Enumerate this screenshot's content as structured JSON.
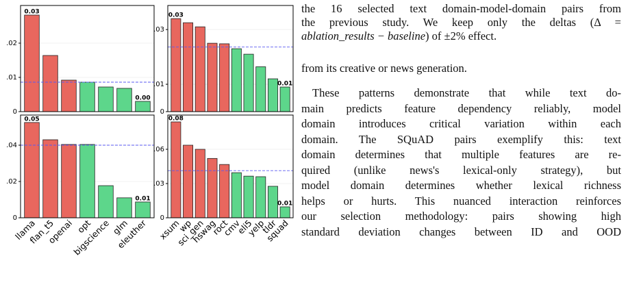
{
  "chart_data": [
    {
      "type": "bar",
      "ylim": [
        0,
        0.031
      ],
      "yticks": [
        0,
        {
          "value": 0.01,
          "label": ".01"
        },
        {
          "value": 0.02,
          "label": ".02"
        }
      ],
      "grid": true,
      "values": [
        0.0282,
        0.0164,
        0.0092,
        0.0086,
        0.0072,
        0.0068,
        0.003
      ],
      "value_labels": [
        "0.03",
        null,
        null,
        null,
        null,
        null,
        "0.00"
      ],
      "colors": [
        "#e8675e",
        "#e8675e",
        "#e8675e",
        "#5dd68b",
        "#5dd68b",
        "#5dd68b",
        "#5dd68b"
      ],
      "reference_line": 0.0086
    },
    {
      "type": "bar",
      "ylim": [
        0,
        0.0388
      ],
      "yticks": [
        0,
        {
          "value": 0.01,
          "label": ".01"
        },
        {
          "value": 0.03,
          "label": ".03"
        }
      ],
      "grid": true,
      "values": [
        0.034,
        0.0325,
        0.031,
        0.025,
        0.0248,
        0.023,
        0.021,
        0.0164,
        0.012,
        0.009
      ],
      "value_labels": [
        "0.03",
        null,
        null,
        null,
        null,
        null,
        null,
        null,
        null,
        "0.01"
      ],
      "colors": [
        "#e8675e",
        "#e8675e",
        "#e8675e",
        "#e8675e",
        "#e8675e",
        "#5dd68b",
        "#5dd68b",
        "#5dd68b",
        "#5dd68b",
        "#5dd68b"
      ],
      "reference_line": 0.0236
    },
    {
      "type": "bar",
      "ylim": [
        0,
        0.0566
      ],
      "yticks": [
        0,
        {
          "value": 0.02,
          "label": ".02"
        },
        {
          "value": 0.04,
          "label": ".04"
        }
      ],
      "grid": true,
      "categories": [
        "llama",
        "flan_t5",
        "openai",
        "opt",
        "bigscience",
        "glm",
        "eleuther"
      ],
      "values": [
        0.0525,
        0.043,
        0.0404,
        0.0404,
        0.0177,
        0.011,
        0.0087
      ],
      "value_labels": [
        "0.05",
        null,
        null,
        null,
        null,
        null,
        "0.01"
      ],
      "colors": [
        "#e8675e",
        "#e8675e",
        "#e8675e",
        "#5dd68b",
        "#5dd68b",
        "#5dd68b",
        "#5dd68b"
      ],
      "reference_line": 0.04
    },
    {
      "type": "bar",
      "ylim": [
        0,
        0.09
      ],
      "yticks": [
        0,
        {
          "value": 0.03,
          "label": ".03"
        },
        {
          "value": 0.06,
          "label": ".06"
        }
      ],
      "grid": true,
      "categories": [
        "xsum",
        "wp",
        "sci_gen",
        "hswag",
        "roct",
        "cmv",
        "eli5",
        "yelp",
        "tldr",
        "squad"
      ],
      "values": [
        0.084,
        0.0636,
        0.06,
        0.052,
        0.0467,
        0.0395,
        0.0365,
        0.036,
        0.0276,
        0.0096
      ],
      "value_labels": [
        "0.08",
        null,
        null,
        null,
        null,
        null,
        null,
        null,
        null,
        "0.01"
      ],
      "colors": [
        "#e8675e",
        "#e8675e",
        "#e8675e",
        "#e8675e",
        "#e8675e",
        "#5dd68b",
        "#5dd68b",
        "#5dd68b",
        "#5dd68b",
        "#5dd68b"
      ],
      "reference_line": 0.0413
    }
  ],
  "text": {
    "caption_lines": [
      "the 16 selected text domain-model-domain pairs from",
      "the previous study. We keep only the deltas (Δ ="
    ],
    "caption_math": "ablation_results − baseline",
    "caption_end": ") of ±2% effect.",
    "para1": "from its creative or news generation.",
    "para2_lines": [
      "These patterns demonstrate that while text do-",
      "main predicts feature dependency reliably, model",
      "domain introduces critical variation within each",
      "domain. The SQuAD pairs exemplify this: text",
      "domain determines that multiple features are re-",
      "quired (unlike news's lexical-only strategy), but",
      "model domain determines whether lexical richness",
      "helps or hurts. This nuanced interaction reinforces",
      "our selection methodology: pairs showing high",
      "standard deviation changes between ID and OOD"
    ]
  }
}
